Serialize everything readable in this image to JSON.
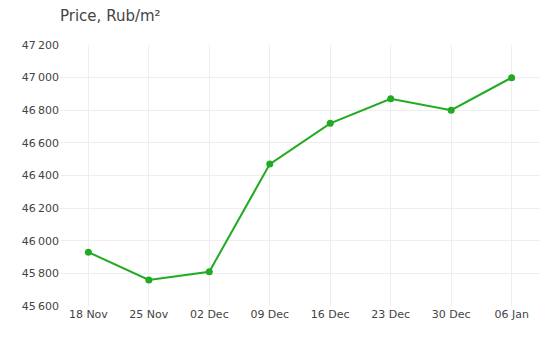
{
  "chart_data": {
    "type": "line",
    "title": "Price, Rub/m²",
    "categories": [
      "18 Nov",
      "25 Nov",
      "02 Dec",
      "09 Dec",
      "16 Dec",
      "23 Dec",
      "30 Dec",
      "06 Jan"
    ],
    "values": [
      45930,
      45760,
      45810,
      46470,
      46720,
      46870,
      46800,
      47000
    ],
    "color": "#22aa22",
    "marker": "circle",
    "ylim": [
      45600,
      47200
    ],
    "yticks": [
      {
        "value": 45600,
        "label": "45 600"
      },
      {
        "value": 45800,
        "label": "45 800"
      },
      {
        "value": 46000,
        "label": "46 000"
      },
      {
        "value": 46200,
        "label": "46 200"
      },
      {
        "value": 46400,
        "label": "46 400"
      },
      {
        "value": 46600,
        "label": "46 600"
      },
      {
        "value": 46800,
        "label": "46 800"
      },
      {
        "value": 47000,
        "label": "47 000"
      },
      {
        "value": 47200,
        "label": "47 200"
      }
    ],
    "grid": true
  }
}
